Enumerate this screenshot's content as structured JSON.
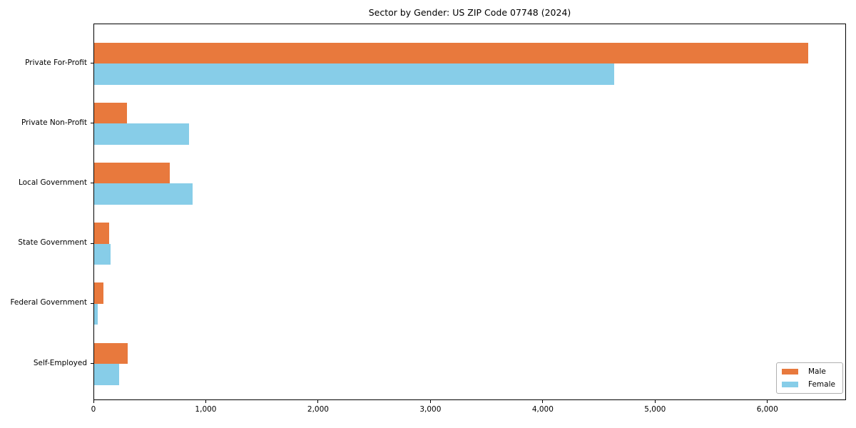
{
  "title": "Sector by Gender: US ZIP Code 07748 (2024)",
  "legend": {
    "items": [
      {
        "label": "Male",
        "color": "#e8793d"
      },
      {
        "label": "Female",
        "color": "#87cde8"
      }
    ]
  },
  "chart_data": {
    "type": "bar",
    "orientation": "horizontal",
    "title": "Sector by Gender: US ZIP Code 07748 (2024)",
    "categories": [
      "Private For-Profit",
      "Private Non-Profit",
      "Local Government",
      "State Government",
      "Federal Government",
      "Self-Employed"
    ],
    "series": [
      {
        "name": "Male",
        "color": "#e8793d",
        "values": [
          6370,
          290,
          675,
          135,
          85,
          300
        ]
      },
      {
        "name": "Female",
        "color": "#87cde8",
        "values": [
          4640,
          845,
          880,
          145,
          30,
          225
        ]
      }
    ],
    "xlabel": "",
    "ylabel": "",
    "xlim": [
      0,
      6700
    ],
    "xticks": [
      0,
      1000,
      2000,
      3000,
      4000,
      5000,
      6000
    ],
    "xtick_labels": [
      "0",
      "1,000",
      "2,000",
      "3,000",
      "4,000",
      "5,000",
      "6,000"
    ],
    "grid": false,
    "legend_position": "lower right"
  }
}
